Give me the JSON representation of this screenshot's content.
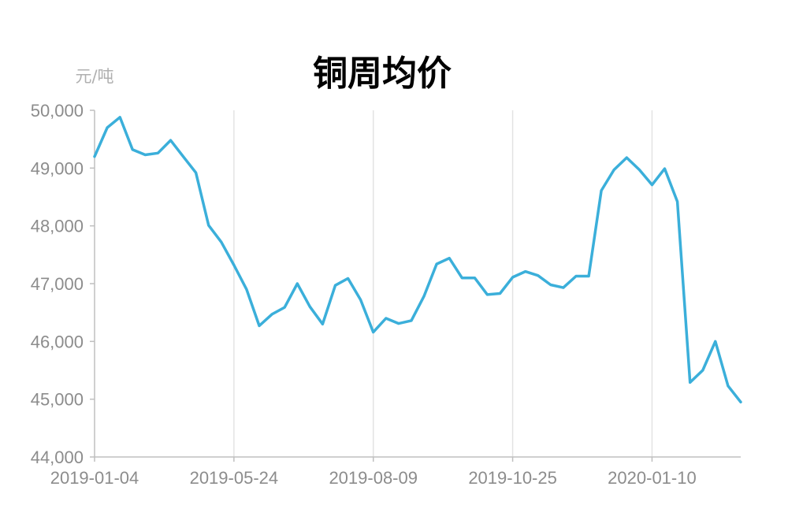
{
  "chart_data": {
    "type": "line",
    "title": "铜周均价",
    "unit_label": "元/吨",
    "xlabel": "",
    "ylabel": "",
    "ylim": [
      44000,
      50000
    ],
    "y_ticks": [
      "44,000",
      "45,000",
      "46,000",
      "47,000",
      "48,000",
      "49,000",
      "50,000"
    ],
    "y_tick_values": [
      44000,
      45000,
      46000,
      47000,
      48000,
      49000,
      50000
    ],
    "x_ticks": [
      "2019-01-04",
      "2019-05-24",
      "2019-08-09",
      "2019-10-25",
      "2020-01-10"
    ],
    "x_tick_index": [
      0,
      11,
      22,
      33,
      44
    ],
    "grid": "vertical",
    "legend": "none",
    "color": "#3BAFDA",
    "series": [
      {
        "values": [
          49200,
          49700,
          49880,
          49320,
          49230,
          49260,
          49480,
          49200,
          48920,
          48010,
          47720,
          47320,
          46900,
          46270,
          46470,
          46590,
          47000,
          46600,
          46300,
          46970,
          47090,
          46720,
          46160,
          46400,
          46310,
          46360,
          46780,
          47340,
          47440,
          47100,
          47100,
          46810,
          46830,
          47110,
          47210,
          47140,
          46980,
          46930,
          47130,
          47130,
          48610,
          48970,
          49180,
          48970,
          48710,
          48990,
          48420,
          45290,
          45500,
          46000,
          45230,
          44950
        ]
      }
    ]
  }
}
